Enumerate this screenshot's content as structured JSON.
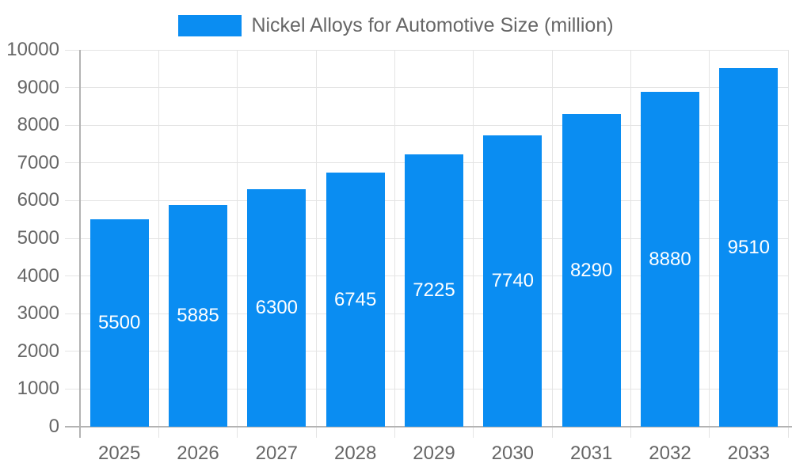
{
  "legend": {
    "label": "Nickel Alloys for Automotive Size (million)"
  },
  "chart_data": {
    "type": "bar",
    "title": "Nickel Alloys for Automotive Size (million)",
    "categories": [
      "2025",
      "2026",
      "2027",
      "2028",
      "2029",
      "2030",
      "2031",
      "2032",
      "2033"
    ],
    "series": [
      {
        "name": "Nickel Alloys for Automotive Size (million)",
        "values": [
          5500,
          5885,
          6300,
          6745,
          7225,
          7740,
          8290,
          8880,
          9510
        ]
      }
    ],
    "xlabel": "",
    "ylabel": "",
    "ylim": [
      0,
      10000
    ],
    "ytick_step": 1000,
    "yticks": [
      0,
      1000,
      2000,
      3000,
      4000,
      5000,
      6000,
      7000,
      8000,
      9000,
      10000
    ],
    "grid": true,
    "legend_position": "top-center",
    "bar_labels_inside": true,
    "colors": {
      "bar": "#0a8df2",
      "bar_value_text": "#ffffff",
      "axis_text": "#666666",
      "grid_line": "#e4e4e4",
      "axis_line": "#b3b3b3",
      "legend_text": "#666666"
    }
  }
}
